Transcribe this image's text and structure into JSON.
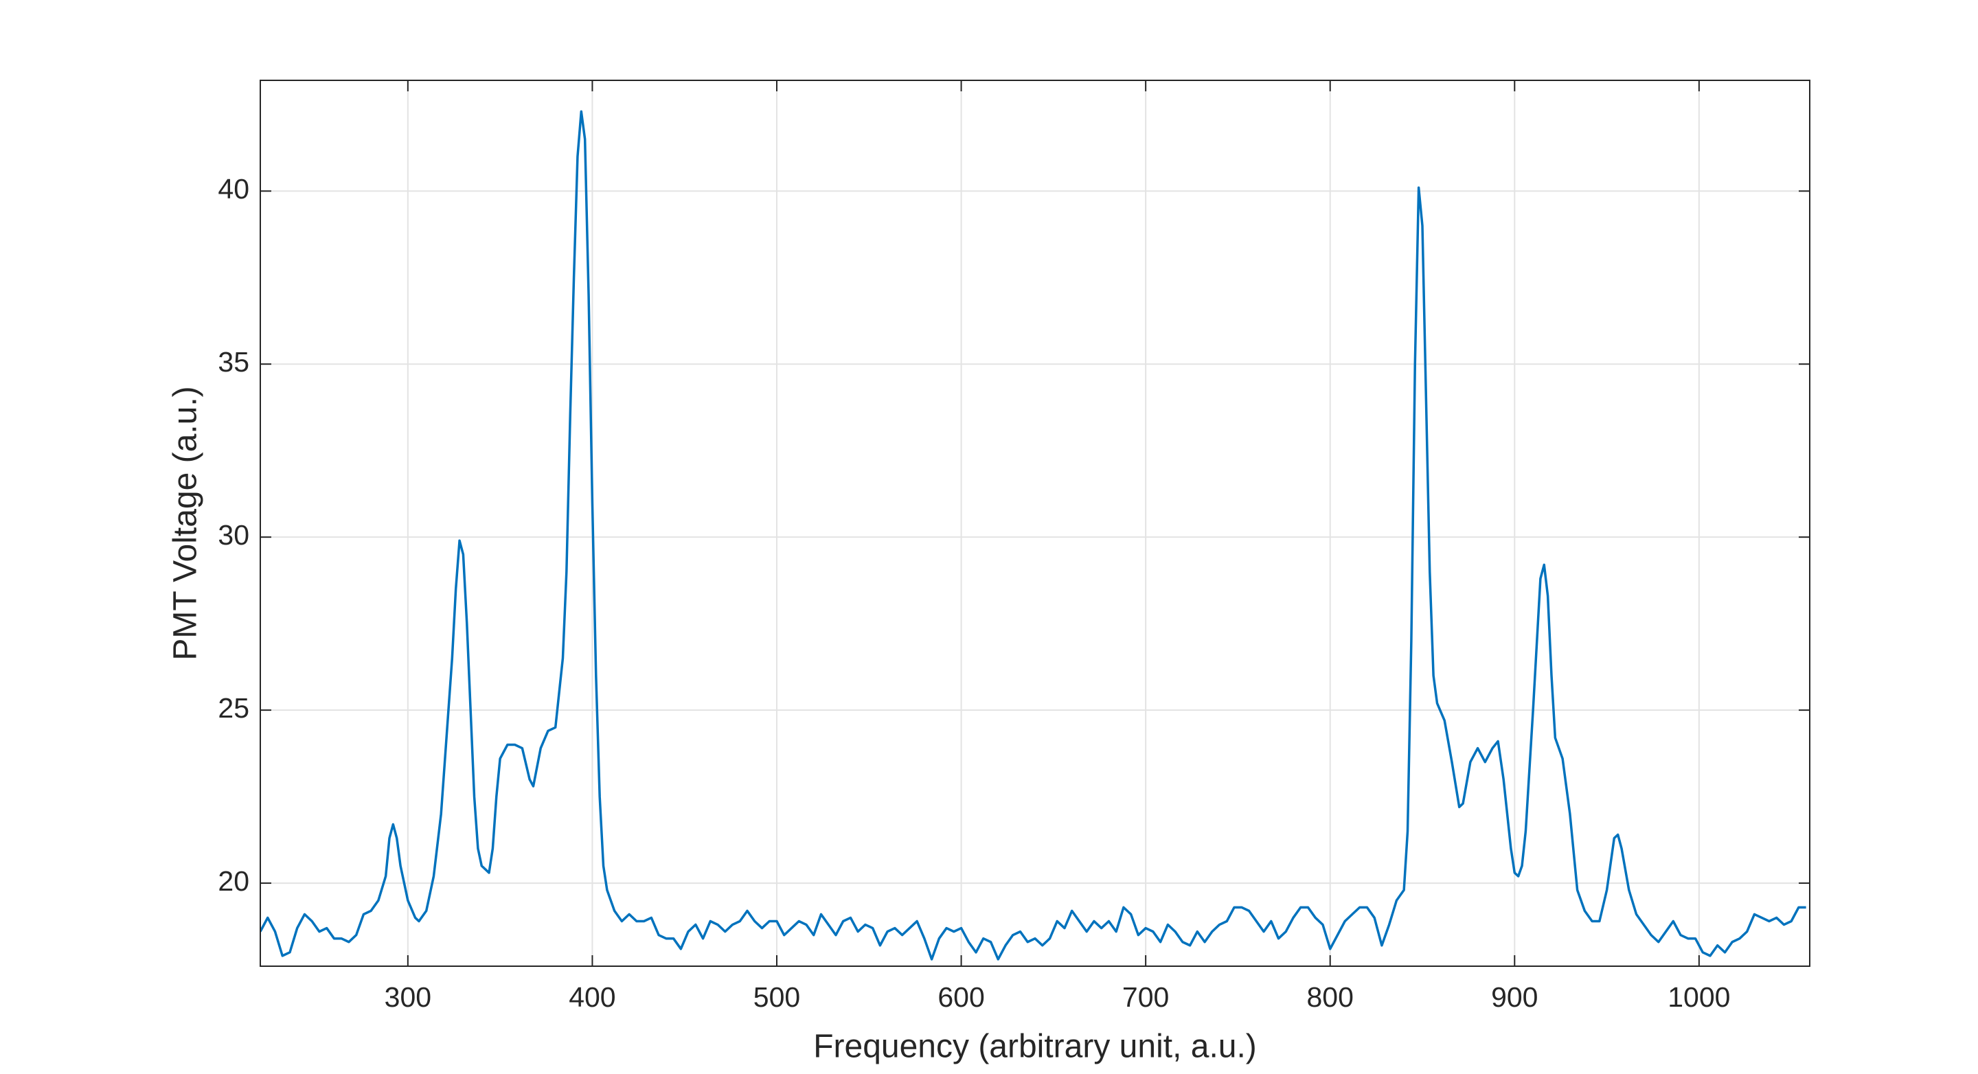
{
  "chart_data": {
    "type": "line",
    "xlabel": "Frequency (arbitrary unit, a.u.)",
    "ylabel": "PMT Voltage (a.u.)",
    "color": "#0072bd",
    "grid": true,
    "xlim": [
      220,
      1060
    ],
    "ylim": [
      17.6,
      43.2
    ],
    "xticks": [
      300,
      400,
      500,
      600,
      700,
      800,
      900,
      1000
    ],
    "yticks": [
      20,
      25,
      30,
      35,
      40
    ],
    "x": [
      220,
      224,
      228,
      232,
      236,
      240,
      244,
      248,
      252,
      256,
      260,
      264,
      268,
      272,
      276,
      280,
      284,
      288,
      290,
      292,
      294,
      296,
      300,
      304,
      306,
      310,
      314,
      318,
      320,
      322,
      324,
      326,
      328,
      330,
      332,
      334,
      336,
      338,
      340,
      344,
      346,
      348,
      350,
      354,
      358,
      362,
      366,
      368,
      372,
      376,
      380,
      384,
      386,
      388,
      390,
      392,
      394,
      396,
      398,
      400,
      402,
      404,
      406,
      408,
      412,
      416,
      420,
      424,
      428,
      432,
      436,
      440,
      444,
      448,
      452,
      456,
      460,
      464,
      468,
      472,
      476,
      480,
      484,
      488,
      492,
      496,
      500,
      504,
      508,
      512,
      516,
      520,
      524,
      528,
      532,
      536,
      540,
      544,
      548,
      552,
      556,
      560,
      564,
      568,
      572,
      576,
      580,
      584,
      588,
      592,
      596,
      600,
      604,
      608,
      612,
      616,
      620,
      624,
      628,
      632,
      636,
      640,
      644,
      648,
      652,
      656,
      660,
      664,
      668,
      672,
      676,
      680,
      684,
      688,
      692,
      696,
      700,
      704,
      708,
      712,
      716,
      720,
      724,
      728,
      732,
      736,
      740,
      744,
      748,
      752,
      756,
      760,
      764,
      768,
      772,
      776,
      780,
      784,
      788,
      792,
      796,
      800,
      804,
      808,
      812,
      816,
      820,
      824,
      828,
      832,
      836,
      840,
      842,
      844,
      846,
      848,
      850,
      852,
      854,
      856,
      858,
      862,
      866,
      870,
      872,
      876,
      880,
      884,
      888,
      891,
      894,
      898,
      900,
      902,
      904,
      906,
      910,
      914,
      916,
      918,
      920,
      922,
      926,
      930,
      934,
      938,
      942,
      946,
      950,
      954,
      956,
      958,
      962,
      966,
      970,
      974,
      978,
      982,
      986,
      990,
      994,
      998,
      1002,
      1006,
      1010,
      1014,
      1018,
      1022,
      1026,
      1030,
      1034,
      1038,
      1042,
      1046,
      1050,
      1054,
      1058
    ],
    "values": [
      18.6,
      19.0,
      18.6,
      17.9,
      18.0,
      18.7,
      19.1,
      18.9,
      18.6,
      18.7,
      18.4,
      18.4,
      18.3,
      18.5,
      19.1,
      19.2,
      19.5,
      20.2,
      21.3,
      21.7,
      21.3,
      20.5,
      19.5,
      19.0,
      18.9,
      19.2,
      20.2,
      22.0,
      23.5,
      25.0,
      26.5,
      28.5,
      29.9,
      29.5,
      27.5,
      25.0,
      22.5,
      21.0,
      20.5,
      20.3,
      21.0,
      22.5,
      23.6,
      24.0,
      24.0,
      23.9,
      23.0,
      22.8,
      23.9,
      24.4,
      24.5,
      26.5,
      29.0,
      33.5,
      37.5,
      41.0,
      42.3,
      41.5,
      37.0,
      31.0,
      26.0,
      22.5,
      20.5,
      19.8,
      19.2,
      18.9,
      19.1,
      18.9,
      18.9,
      19.0,
      18.5,
      18.4,
      18.4,
      18.1,
      18.6,
      18.8,
      18.4,
      18.9,
      18.8,
      18.6,
      18.8,
      18.9,
      19.2,
      18.9,
      18.7,
      18.9,
      18.9,
      18.5,
      18.7,
      18.9,
      18.8,
      18.5,
      19.1,
      18.8,
      18.5,
      18.9,
      19.0,
      18.6,
      18.8,
      18.7,
      18.2,
      18.6,
      18.7,
      18.5,
      18.7,
      18.9,
      18.4,
      17.8,
      18.4,
      18.7,
      18.6,
      18.7,
      18.3,
      18.0,
      18.4,
      18.3,
      17.8,
      18.2,
      18.5,
      18.6,
      18.3,
      18.4,
      18.2,
      18.4,
      18.9,
      18.7,
      19.2,
      18.9,
      18.6,
      18.9,
      18.7,
      18.9,
      18.6,
      19.3,
      19.1,
      18.5,
      18.7,
      18.6,
      18.3,
      18.8,
      18.6,
      18.3,
      18.2,
      18.6,
      18.3,
      18.6,
      18.8,
      18.9,
      19.3,
      19.3,
      19.2,
      18.9,
      18.6,
      18.9,
      18.4,
      18.6,
      19.0,
      19.3,
      19.3,
      19.0,
      18.8,
      18.1,
      18.5,
      18.9,
      19.1,
      19.3,
      19.3,
      19.0,
      18.2,
      18.8,
      19.5,
      19.8,
      21.5,
      27.0,
      35.0,
      40.1,
      39.0,
      34.0,
      29.0,
      26.0,
      25.2,
      24.7,
      23.5,
      22.2,
      22.3,
      23.5,
      23.9,
      23.5,
      23.9,
      24.1,
      23.0,
      21.0,
      20.3,
      20.2,
      20.5,
      21.5,
      25.0,
      28.8,
      29.2,
      28.3,
      26.0,
      24.2,
      23.6,
      22.0,
      19.8,
      19.2,
      18.9,
      18.9,
      19.8,
      21.3,
      21.4,
      21.0,
      19.8,
      19.1,
      18.8,
      18.5,
      18.3,
      18.6,
      18.9,
      18.5,
      18.4,
      18.4,
      18.0,
      17.9,
      18.2,
      18.0,
      18.3,
      18.4,
      18.6,
      19.1,
      19.0,
      18.9,
      19.0,
      18.8,
      18.9,
      19.3,
      19.3
    ]
  }
}
